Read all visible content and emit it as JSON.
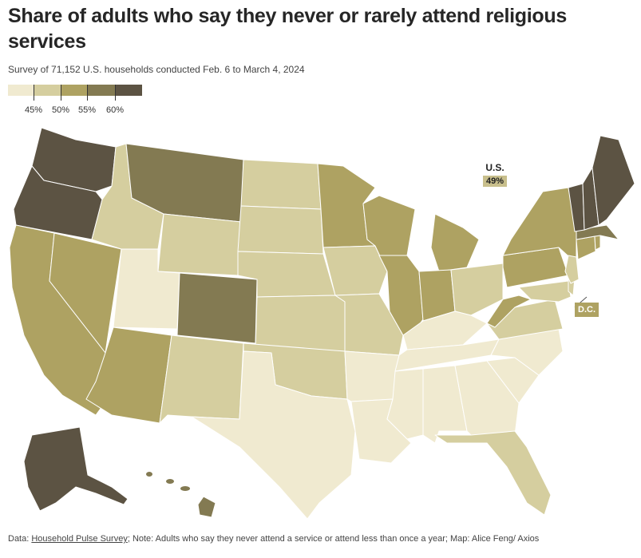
{
  "title": "Share of adults who say they never or rarely attend religious services",
  "subtitle": "Survey of 71,152 U.S. households conducted Feb. 6 to March 4, 2024",
  "legend": {
    "colors": [
      "#f0ead0",
      "#d5ce9f",
      "#aea262",
      "#837a52",
      "#5c5343"
    ],
    "breaks": [
      "45%",
      "50%",
      "55%",
      "60%"
    ]
  },
  "us_average": {
    "label": "U.S.",
    "value": "49%"
  },
  "dc_label": "D.C.",
  "footer": {
    "data_prefix": "Data: ",
    "data_link": "Household Pulse Survey",
    "note": "; Note: Adults who say they never attend a service or attend less than once a year; Map: Alice Feng/ Axios"
  },
  "states": [
    {
      "id": "WA",
      "bin": 4
    },
    {
      "id": "OR",
      "bin": 4
    },
    {
      "id": "CA",
      "bin": 2
    },
    {
      "id": "NV",
      "bin": 2
    },
    {
      "id": "ID",
      "bin": 1
    },
    {
      "id": "MT",
      "bin": 3
    },
    {
      "id": "WY",
      "bin": 1
    },
    {
      "id": "UT",
      "bin": 0
    },
    {
      "id": "AZ",
      "bin": 2
    },
    {
      "id": "CO",
      "bin": 3
    },
    {
      "id": "NM",
      "bin": 1
    },
    {
      "id": "ND",
      "bin": 1
    },
    {
      "id": "SD",
      "bin": 1
    },
    {
      "id": "NE",
      "bin": 1
    },
    {
      "id": "KS",
      "bin": 1
    },
    {
      "id": "OK",
      "bin": 1
    },
    {
      "id": "TX",
      "bin": 0
    },
    {
      "id": "MN",
      "bin": 2
    },
    {
      "id": "IA",
      "bin": 1
    },
    {
      "id": "MO",
      "bin": 1
    },
    {
      "id": "AR",
      "bin": 0
    },
    {
      "id": "LA",
      "bin": 0
    },
    {
      "id": "WI",
      "bin": 2
    },
    {
      "id": "IL",
      "bin": 2
    },
    {
      "id": "MI",
      "bin": 2
    },
    {
      "id": "IN",
      "bin": 2
    },
    {
      "id": "OH",
      "bin": 1
    },
    {
      "id": "KY",
      "bin": 0
    },
    {
      "id": "TN",
      "bin": 0
    },
    {
      "id": "MS",
      "bin": 0
    },
    {
      "id": "AL",
      "bin": 0
    },
    {
      "id": "GA",
      "bin": 0
    },
    {
      "id": "FL",
      "bin": 1
    },
    {
      "id": "SC",
      "bin": 0
    },
    {
      "id": "NC",
      "bin": 0
    },
    {
      "id": "VA",
      "bin": 1
    },
    {
      "id": "WV",
      "bin": 2
    },
    {
      "id": "PA",
      "bin": 2
    },
    {
      "id": "NY",
      "bin": 2
    },
    {
      "id": "MD",
      "bin": 1
    },
    {
      "id": "DE",
      "bin": 1
    },
    {
      "id": "NJ",
      "bin": 1
    },
    {
      "id": "CT",
      "bin": 2
    },
    {
      "id": "RI",
      "bin": 2
    },
    {
      "id": "MA",
      "bin": 3
    },
    {
      "id": "VT",
      "bin": 4
    },
    {
      "id": "NH",
      "bin": 4
    },
    {
      "id": "ME",
      "bin": 4
    },
    {
      "id": "AK",
      "bin": 4
    },
    {
      "id": "HI",
      "bin": 3
    }
  ]
}
